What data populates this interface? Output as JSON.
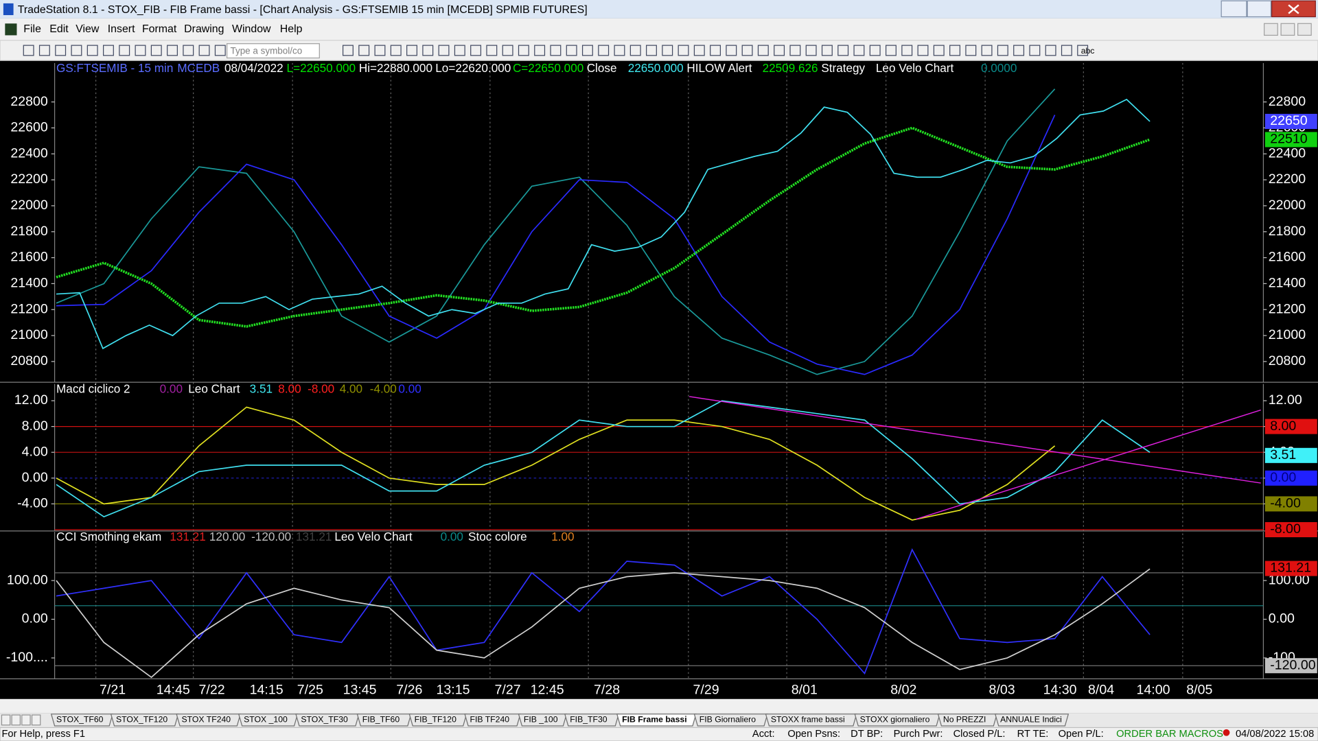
{
  "window": {
    "title": "TradeStation 8.1 - STOX_FIB - FIB Frame bassi - [Chart Analysis - GS:FTSEMIB  15 min  [MCEDB] SPMIB FUTURES]",
    "menu": [
      "File",
      "Edit",
      "View",
      "Insert",
      "Format",
      "Drawing",
      "Window",
      "Help"
    ],
    "symbol_box": "Type a symbol/co",
    "abc": "abc"
  },
  "price_panel": {
    "header": [
      {
        "text": "GS:FTSEMIB - 15 min",
        "color": "#5a6cff"
      },
      {
        "text": "MCEDB",
        "color": "#5a6cff"
      },
      {
        "text": "08/04/2022",
        "color": "#ffffff"
      },
      {
        "text": "L=22650.000",
        "color": "#00e000"
      },
      {
        "text": "Hi=22880.000",
        "color": "#ffffff"
      },
      {
        "text": "Lo=22620.000",
        "color": "#ffffff"
      },
      {
        "text": "C=22650.000",
        "color": "#00e000"
      },
      {
        "text": "Close",
        "color": "#ffffff"
      },
      {
        "text": "22650.000",
        "color": "#40e8f0"
      },
      {
        "text": "HILOW Alert",
        "color": "#ffffff"
      },
      {
        "text": "22509.626",
        "color": "#00e000"
      },
      {
        "text": "Strategy",
        "color": "#ffffff"
      },
      {
        "text": "Leo Velo Chart",
        "color": "#ffffff"
      },
      {
        "text": "0.0000",
        "color": "#0a8a8a"
      }
    ],
    "ylim": [
      20640,
      23100
    ],
    "yticks": [
      20800,
      21000,
      21200,
      21400,
      21600,
      21800,
      22000,
      22200,
      22400,
      22600,
      22800
    ],
    "series": [
      {
        "name": "channel-teal",
        "color": "#1a9a9a",
        "values": [
          21250,
          21400,
          21900,
          22300,
          22250,
          21800,
          21150,
          20950,
          21150,
          21700,
          22150,
          22220,
          21850,
          21300,
          20980,
          20850,
          20700,
          20800,
          21150,
          21800,
          22500,
          22900,
          null,
          null
        ]
      },
      {
        "name": "channel-blue",
        "color": "#2a2aff",
        "values": [
          21230,
          21240,
          21500,
          21950,
          22320,
          22200,
          21700,
          21150,
          20980,
          21200,
          21800,
          22200,
          22180,
          21900,
          21300,
          20950,
          20780,
          20700,
          20850,
          21200,
          21900,
          22700,
          null,
          null
        ]
      },
      {
        "name": "hilow",
        "color": "#22e022",
        "values": [
          21450,
          21560,
          21400,
          21120,
          21070,
          21150,
          21200,
          21250,
          21310,
          21270,
          21190,
          21220,
          21330,
          21520,
          21780,
          22040,
          22280,
          22480,
          22600,
          22450,
          22300,
          22280,
          22380,
          22510
        ]
      },
      {
        "name": "price",
        "color": "#40e0f0",
        "values": [
          21320,
          21330,
          20900,
          21000,
          21080,
          21000,
          21150,
          21250,
          21250,
          21300,
          21200,
          21280,
          21300,
          21320,
          21380,
          21250,
          21150,
          21200,
          21170,
          21250,
          21250,
          21320,
          21360,
          21700,
          21650,
          21680,
          21760,
          21950,
          22280,
          22330,
          22380,
          22420,
          22560,
          22760,
          22720,
          22550,
          22250,
          22220,
          22220,
          22280,
          22350,
          22330,
          22380,
          22520,
          22700,
          22730,
          22820,
          22650
        ]
      }
    ],
    "tags": [
      {
        "value": 22650,
        "bg": "#4040ff",
        "fg": "#ffffff"
      },
      {
        "value": 22510,
        "bg": "#10d010",
        "fg": "#000000"
      }
    ]
  },
  "macd_panel": {
    "header": [
      {
        "text": "Macd ciclico 2",
        "color": "#ffffff"
      },
      {
        "text": "0.00",
        "color": "#a020a0"
      },
      {
        "text": "Leo Chart",
        "color": "#ffffff"
      },
      {
        "text": "3.51",
        "color": "#40e8f0"
      },
      {
        "text": "8.00",
        "color": "#ff2020"
      },
      {
        "text": "-8.00",
        "color": "#ff2020"
      },
      {
        "text": "4.00",
        "color": "#909000"
      },
      {
        "text": "-4.00",
        "color": "#909000"
      },
      {
        "text": "0.00",
        "color": "#3030ff"
      }
    ],
    "ylim": [
      -8.2,
      14.6
    ],
    "yticks": [
      {
        "value": -4,
        "label": "-4.00"
      },
      {
        "value": 0,
        "label": "0.00"
      },
      {
        "value": 4,
        "label": "4.00"
      },
      {
        "value": 8,
        "label": "8.00"
      },
      {
        "value": 12,
        "label": "12.00"
      }
    ],
    "levels": [
      {
        "value": 8,
        "color": "#d01010"
      },
      {
        "value": 4,
        "color": "#b01010"
      },
      {
        "value": 0,
        "color": "#2020c0"
      },
      {
        "value": -4,
        "color": "#808000"
      },
      {
        "value": -8,
        "color": "#d01010"
      }
    ],
    "series": [
      {
        "name": "macd-yellow",
        "color": "#e0e020",
        "values": [
          0,
          -4,
          -3,
          5,
          11,
          9,
          4,
          0,
          -1,
          -1,
          2,
          6,
          9,
          9,
          8,
          6,
          2,
          -3,
          -6.5,
          -5,
          -1,
          5,
          null,
          null
        ]
      },
      {
        "name": "macd-cyan",
        "color": "#40e0f0",
        "values": [
          -1,
          -6,
          -3,
          1,
          2,
          2,
          2,
          -2,
          -2,
          2,
          4,
          9,
          8,
          8,
          12,
          11,
          10,
          9,
          3,
          -4,
          -3,
          1,
          9,
          4
        ]
      }
    ],
    "tags": [
      {
        "value": 8,
        "label": "8.00",
        "bg": "#e01010",
        "fg": "#000000"
      },
      {
        "value": 3.51,
        "label": "3.51",
        "bg": "#40f0f8",
        "fg": "#000000"
      },
      {
        "value": 0,
        "label": "0.00",
        "bg": "#2020ff",
        "fg": "#000080"
      },
      {
        "value": -4,
        "label": "-4.00",
        "bg": "#808000",
        "fg": "#000000"
      },
      {
        "value": -8,
        "label": "-8.00",
        "bg": "#e01010",
        "fg": "#000000"
      }
    ]
  },
  "cci_panel": {
    "header": [
      {
        "text": "CCI Smothing ekam",
        "color": "#ffffff"
      },
      {
        "text": "131.21",
        "color": "#e02020"
      },
      {
        "text": "120.00",
        "color": "#c0c0c0"
      },
      {
        "text": "-120.00",
        "color": "#c0c0c0"
      },
      {
        "text": "131.21",
        "color": "#404040"
      },
      {
        "text": "Leo Velo Chart",
        "color": "#ffffff"
      },
      {
        "text": "0.00",
        "color": "#0a8a8a"
      },
      {
        "text": "Stoc colore",
        "color": "#ffffff"
      },
      {
        "text": "1.00",
        "color": "#e08020"
      }
    ],
    "ylim": [
      -154,
      226
    ],
    "yticks": [
      {
        "value": -100,
        "label": "-100...."
      },
      {
        "value": 0,
        "label": "0.00"
      },
      {
        "value": 100,
        "label": "100.00"
      }
    ],
    "levels": [
      {
        "value": 120,
        "color": "#707070"
      },
      {
        "value": 35,
        "color": "#1a8a8a"
      },
      {
        "value": -120,
        "color": "#707070"
      }
    ],
    "series": [
      {
        "name": "cci-blue",
        "color": "#3030ff",
        "values": [
          60,
          80,
          100,
          -50,
          120,
          -40,
          -60,
          110,
          -80,
          -60,
          120,
          20,
          150,
          140,
          60,
          110,
          0,
          -140,
          180,
          -50,
          -60,
          -50,
          110,
          -40
        ]
      },
      {
        "name": "cci-white",
        "color": "#d0d0d0",
        "values": [
          100,
          -60,
          -150,
          -40,
          40,
          80,
          50,
          30,
          -80,
          -100,
          -20,
          80,
          110,
          120,
          110,
          100,
          80,
          30,
          -60,
          -130,
          -100,
          -40,
          40,
          130
        ]
      }
    ],
    "tags": [
      {
        "value": 131.21,
        "label": "131.21",
        "bg": "#e01010",
        "fg": "#000000"
      },
      {
        "value": -120,
        "label": "-120.00",
        "bg": "#c0c0c0",
        "fg": "#000000"
      }
    ]
  },
  "x_labels": [
    "7/21",
    "14:45",
    "7/22",
    "14:15",
    "7/25",
    "13:45",
    "7/26",
    "13:15",
    "7/27",
    "12:45",
    "7/28",
    "7/29",
    "8/01",
    "8/02",
    "8/03",
    "14:30",
    "8/04",
    "14:00",
    "8/05"
  ],
  "tabs": [
    "STOX_TF60",
    "STOX_TF120",
    "STOX TF240",
    "STOX _100",
    "STOX_TF30",
    "FIB_TF60",
    "FIB_TF120",
    "FIB TF240",
    "FIB _100",
    "FIB_TF30",
    "FIB Frame bassi",
    "FIB Giornaliero",
    "STOXX frame bassi",
    "STOXX giornaliero",
    "No PREZZI",
    "ANNUALE Indici"
  ],
  "status": [
    "For Help, press F1",
    "Acct:",
    "Open Psns:",
    "DT BP:",
    "Purch Pwr:",
    "Closed P/L:",
    "RT TE:",
    "Open P/L:",
    "ORDER BAR  MACROS",
    "04/08/2022 15:08"
  ]
}
